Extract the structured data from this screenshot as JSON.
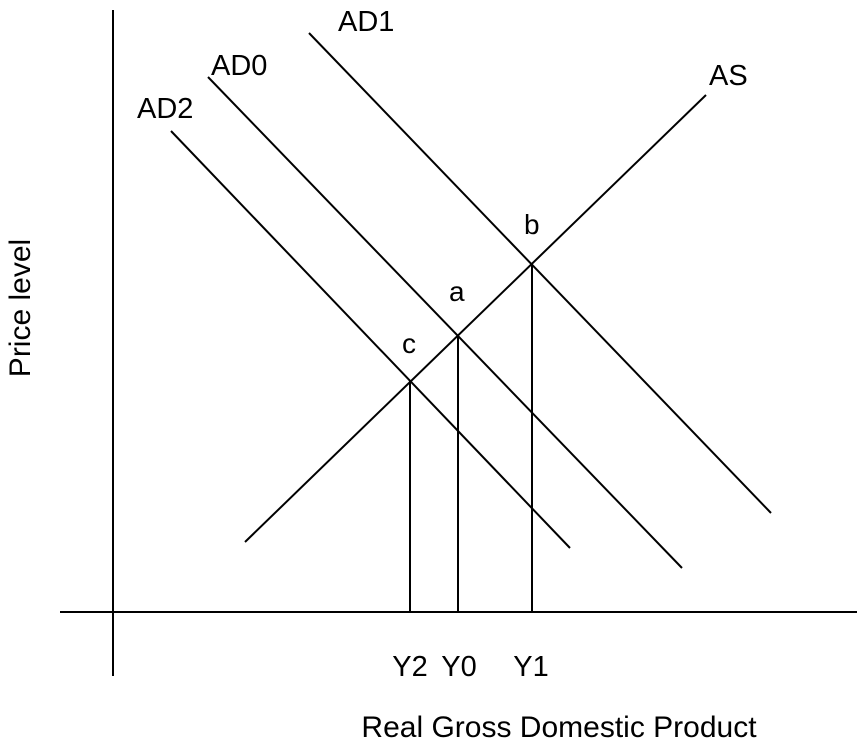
{
  "diagram": {
    "xlabel": "Real Gross Domestic Product",
    "ylabel": "Price level",
    "curves": [
      {
        "id": "AS",
        "label": "AS"
      },
      {
        "id": "AD0",
        "label": "AD0"
      },
      {
        "id": "AD1",
        "label": "AD1"
      },
      {
        "id": "AD2",
        "label": "AD2"
      }
    ],
    "equilibria": [
      {
        "id": "a",
        "label": "a",
        "curves": [
          "AS",
          "AD0"
        ],
        "output_label": "Y0"
      },
      {
        "id": "b",
        "label": "b",
        "curves": [
          "AS",
          "AD1"
        ],
        "output_label": "Y1"
      },
      {
        "id": "c",
        "label": "c",
        "curves": [
          "AS",
          "AD2"
        ],
        "output_label": "Y2"
      }
    ],
    "style": {
      "line_color": "#000000",
      "background": "#ffffff"
    }
  }
}
